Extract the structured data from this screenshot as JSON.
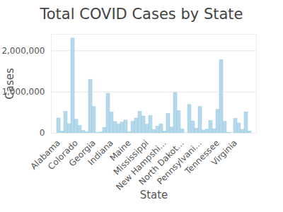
{
  "chart_data": {
    "type": "bar",
    "title": "Total COVID Cases by State",
    "x_label": "State",
    "y_label": "Cases",
    "categories": [
      "Alabama",
      null,
      null,
      null,
      null,
      "Colorado",
      null,
      null,
      null,
      null,
      "Georgia",
      null,
      null,
      null,
      null,
      "Indiana",
      null,
      null,
      null,
      null,
      "Maine",
      null,
      null,
      null,
      null,
      "Mississippi",
      null,
      null,
      null,
      null,
      "New Hampshi...",
      null,
      null,
      null,
      null,
      "North Dakot...",
      null,
      null,
      null,
      null,
      "Pennsylvani...",
      null,
      null,
      null,
      null,
      "Tennessee",
      null,
      null,
      null,
      null,
      "Virginia",
      null,
      null,
      null,
      null
    ],
    "values": [
      361000,
      46000,
      520000,
      222000,
      2300000,
      330000,
      180000,
      56000,
      28000,
      1300000,
      640000,
      7000,
      21000,
      136000,
      960000,
      510000,
      275000,
      215000,
      260000,
      310000,
      23000,
      280000,
      360000,
      520000,
      410000,
      210000,
      420000,
      80000,
      160000,
      220000,
      44000,
      470000,
      140000,
      980000,
      540000,
      92000,
      113,
      690000,
      290000,
      110000,
      640000,
      70000,
      90000,
      300000,
      100000,
      570000,
      1780000,
      280000,
      7000,
      2000,
      350000,
      240000,
      85000,
      510000,
      44000
    ],
    "color": "#b4d9ea",
    "ylim": [
      0,
      2400000
    ],
    "yticks": [
      0,
      {
        "value": 1000000,
        "label": "1,000,000"
      },
      {
        "value": 2000000,
        "label": "2,000,000"
      }
    ],
    "grid": true
  }
}
